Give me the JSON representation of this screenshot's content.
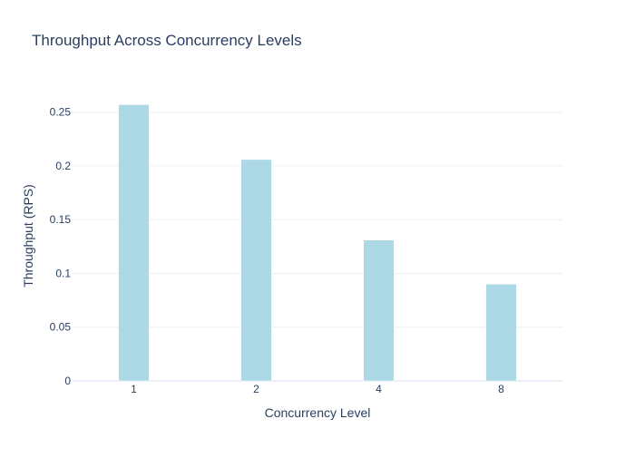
{
  "chart_data": {
    "type": "bar",
    "title": "Throughput Across Concurrency Levels",
    "xlabel": "Concurrency Level",
    "ylabel": "Throughput (RPS)",
    "categories": [
      "1",
      "2",
      "4",
      "8"
    ],
    "values": [
      0.257,
      0.206,
      0.131,
      0.09
    ],
    "ylim": [
      0,
      0.27
    ],
    "yticks": [
      0,
      0.05,
      0.1,
      0.15,
      0.2,
      0.25
    ],
    "ytick_labels": [
      "0",
      "0.05",
      "0.1",
      "0.15",
      "0.2",
      "0.25"
    ],
    "grid": true,
    "legend": "none",
    "bar_color": "#add8e6",
    "bar_edge_color": "#ffffff",
    "grid_color": "#ebf0f8",
    "text_color": "#2a3f5f",
    "background": "#ffffff"
  }
}
